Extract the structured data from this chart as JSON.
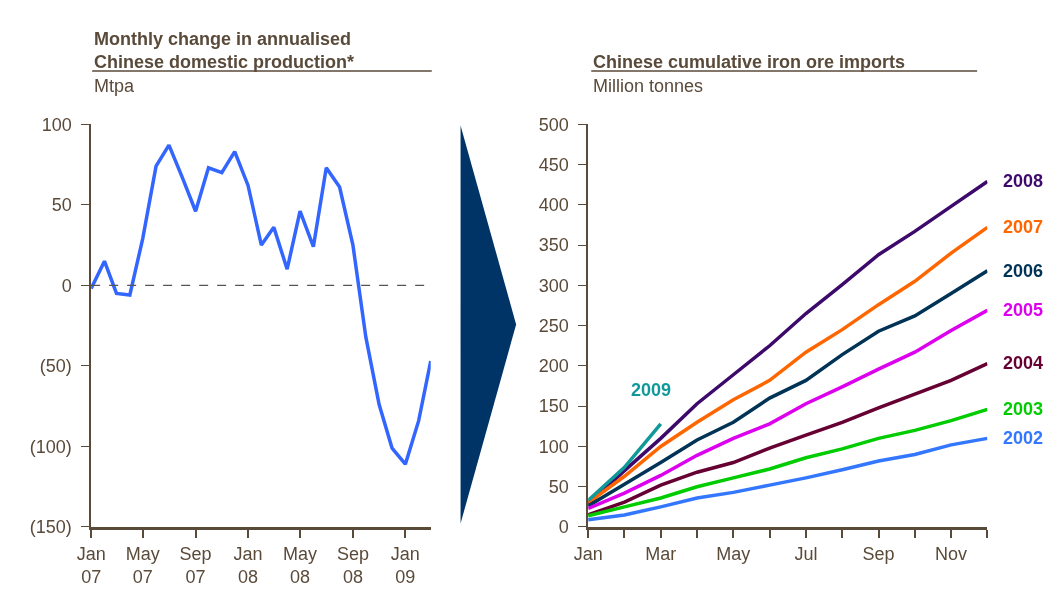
{
  "chart_data": [
    {
      "type": "line",
      "title": "Monthly change in annualised\nChinese domestic production*",
      "subtitle": "Mtpa",
      "x": [
        "2007-01",
        "2007-02",
        "2007-03",
        "2007-04",
        "2007-05",
        "2007-06",
        "2007-07",
        "2007-08",
        "2007-09",
        "2007-10",
        "2007-11",
        "2007-12",
        "2008-01",
        "2008-02",
        "2008-03",
        "2008-04",
        "2008-05",
        "2008-06",
        "2008-07",
        "2008-08",
        "2008-09",
        "2008-10",
        "2008-11",
        "2008-12",
        "2009-01",
        "2009-02",
        "2009-03"
      ],
      "series": [
        {
          "color": "#3366ff",
          "values": [
            -2,
            15,
            -5,
            -6,
            29,
            74,
            87,
            67,
            46,
            73,
            70,
            83,
            62,
            25,
            36,
            10,
            46,
            24,
            73,
            61,
            25,
            -32,
            -74,
            -101,
            -111,
            -84,
            -47
          ]
        }
      ],
      "xlim": [
        "2007-01",
        "2009-03"
      ],
      "xticks": [
        {
          "value": "2007-01",
          "label": "Jan\n07"
        },
        {
          "value": "2007-05",
          "label": "May\n07"
        },
        {
          "value": "2007-09",
          "label": "Sep\n07"
        },
        {
          "value": "2008-01",
          "label": "Jan\n08"
        },
        {
          "value": "2008-05",
          "label": "May\n08"
        },
        {
          "value": "2008-09",
          "label": "Sep\n08"
        },
        {
          "value": "2009-01",
          "label": "Jan\n09"
        }
      ],
      "ylim": [
        -150,
        100
      ],
      "yticks": [
        {
          "value": -150,
          "label": "(150)"
        },
        {
          "value": -100,
          "label": "(100)"
        },
        {
          "value": -50,
          "label": "(50)"
        },
        0,
        50,
        100
      ],
      "ref_lines": [
        {
          "axis": "y",
          "value": 0,
          "label": null,
          "color": "#555555",
          "line_style": "dashed"
        }
      ],
      "line_style": "solid",
      "marker": "none"
    },
    {
      "type": "line",
      "title": "Chinese cumulative iron ore imports",
      "subtitle": "Million tonnes",
      "categories": [
        "Jan",
        null,
        "Mar",
        null,
        "May",
        null,
        "Jul",
        null,
        "Sep",
        null,
        "Nov",
        null
      ],
      "series": [
        {
          "name": "2008",
          "color": "#3d0a6b",
          "values": [
            29,
            70,
            110,
            153,
            189,
            225,
            265,
            301,
            338,
            367,
            398,
            429
          ]
        },
        {
          "name": "2007",
          "color": "#ff6600",
          "values": [
            30,
            63,
            100,
            130,
            158,
            182,
            217,
            245,
            276,
            305,
            340,
            372
          ]
        },
        {
          "name": "2006",
          "color": "#003355",
          "values": [
            26,
            53,
            80,
            108,
            130,
            160,
            182,
            214,
            243,
            262,
            290,
            318
          ]
        },
        {
          "name": "2005",
          "color": "#dd00ee",
          "values": [
            23,
            42,
            64,
            89,
            110,
            128,
            153,
            174,
            196,
            217,
            244,
            269
          ]
        },
        {
          "name": "2004",
          "color": "#660033",
          "values": [
            15,
            31,
            52,
            68,
            80,
            98,
            114,
            130,
            148,
            165,
            182,
            203
          ]
        },
        {
          "name": "2003",
          "color": "#00cc00",
          "values": [
            14,
            25,
            36,
            50,
            61,
            72,
            86,
            97,
            110,
            120,
            132,
            146
          ]
        },
        {
          "name": "2002",
          "color": "#3377ff",
          "values": [
            9,
            15,
            25,
            36,
            43,
            52,
            61,
            71,
            82,
            90,
            102,
            110
          ]
        },
        {
          "name": "2009",
          "color": "#119999",
          "values": [
            33,
            74,
            128,
            null,
            null,
            null,
            null,
            null,
            null,
            null,
            null,
            null
          ]
        }
      ],
      "ylim": [
        0,
        500
      ],
      "yticks": [
        0,
        50,
        100,
        150,
        200,
        250,
        300,
        350,
        400,
        450,
        500
      ],
      "line_style": "solid",
      "marker": "none"
    }
  ]
}
